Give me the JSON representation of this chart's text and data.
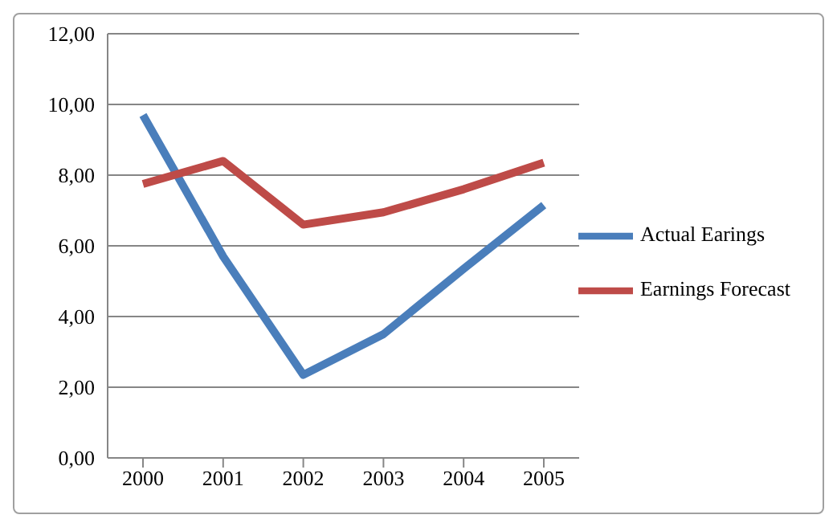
{
  "chart_data": {
    "type": "line",
    "categories": [
      "2000",
      "2001",
      "2002",
      "2003",
      "2004",
      "2005"
    ],
    "series": [
      {
        "name": "Actual Earings",
        "color": "#4a7ebb",
        "values": [
          9.7,
          5.7,
          2.35,
          3.5,
          5.35,
          7.15
        ]
      },
      {
        "name": "Earnings Forecast",
        "color": "#be4b48",
        "values": [
          7.75,
          8.4,
          6.6,
          6.95,
          7.6,
          8.35
        ]
      }
    ],
    "ylim": [
      0,
      12
    ],
    "yticks": [
      {
        "value": 0,
        "label": "0,00"
      },
      {
        "value": 2,
        "label": "2,00"
      },
      {
        "value": 4,
        "label": "4,00"
      },
      {
        "value": 6,
        "label": "6,00"
      },
      {
        "value": 8,
        "label": "8,00"
      },
      {
        "value": 10,
        "label": "10,00"
      },
      {
        "value": 12,
        "label": "12,00"
      }
    ],
    "grid": "y",
    "legend": "right",
    "marker": "none",
    "line_style": "solid"
  }
}
